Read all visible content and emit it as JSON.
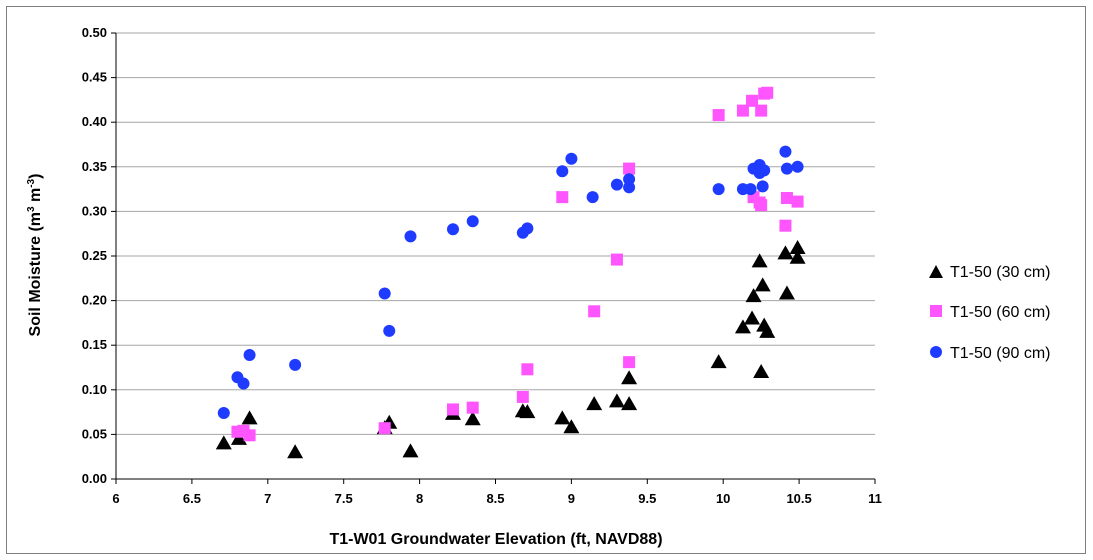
{
  "chart_data": {
    "type": "scatter",
    "xlabel": "T1-W01 Groundwater Elevation (ft, NAVD88)",
    "ylabel": {
      "main": "Soil Moisture (m",
      "sup1": "3",
      "mid": " m",
      "sup2": "-3",
      "end": ")"
    },
    "xlim": [
      6,
      11
    ],
    "ylim": [
      0,
      0.5
    ],
    "x_ticks": [
      "6",
      "6.5",
      "7",
      "7.5",
      "8",
      "8.5",
      "9",
      "9.5",
      "10",
      "10.5",
      "11"
    ],
    "y_ticks": [
      "0.00",
      "0.05",
      "0.10",
      "0.15",
      "0.20",
      "0.25",
      "0.30",
      "0.35",
      "0.40",
      "0.45",
      "0.50"
    ],
    "grid": "horizontal",
    "legend_position": "right",
    "series": [
      {
        "name": "T1-50 (30 cm)",
        "marker": "triangle",
        "color": "#000000",
        "points": [
          [
            6.71,
            0.04
          ],
          [
            6.81,
            0.045
          ],
          [
            6.88,
            0.068
          ],
          [
            7.18,
            0.03
          ],
          [
            7.77,
            0.057
          ],
          [
            7.8,
            0.063
          ],
          [
            7.94,
            0.031
          ],
          [
            8.22,
            0.073
          ],
          [
            8.35,
            0.067
          ],
          [
            8.68,
            0.076
          ],
          [
            8.71,
            0.075
          ],
          [
            8.94,
            0.068
          ],
          [
            9.0,
            0.058
          ],
          [
            9.15,
            0.084
          ],
          [
            9.3,
            0.087
          ],
          [
            9.38,
            0.113
          ],
          [
            9.38,
            0.084
          ],
          [
            9.97,
            0.131
          ],
          [
            10.13,
            0.17
          ],
          [
            10.19,
            0.18
          ],
          [
            10.2,
            0.205
          ],
          [
            10.24,
            0.244
          ],
          [
            10.26,
            0.217
          ],
          [
            10.25,
            0.12
          ],
          [
            10.27,
            0.172
          ],
          [
            10.29,
            0.165
          ],
          [
            10.41,
            0.253
          ],
          [
            10.42,
            0.208
          ],
          [
            10.49,
            0.259
          ],
          [
            10.49,
            0.248
          ]
        ]
      },
      {
        "name": "T1-50 (60 cm)",
        "marker": "square",
        "color": "#ff55ff",
        "points": [
          [
            6.8,
            0.053
          ],
          [
            6.84,
            0.054
          ],
          [
            6.88,
            0.049
          ],
          [
            7.77,
            0.057
          ],
          [
            8.22,
            0.078
          ],
          [
            8.35,
            0.08
          ],
          [
            8.68,
            0.092
          ],
          [
            8.71,
            0.123
          ],
          [
            8.94,
            0.316
          ],
          [
            9.15,
            0.188
          ],
          [
            9.3,
            0.246
          ],
          [
            9.38,
            0.348
          ],
          [
            9.38,
            0.131
          ],
          [
            9.97,
            0.408
          ],
          [
            10.13,
            0.413
          ],
          [
            10.19,
            0.424
          ],
          [
            10.2,
            0.316
          ],
          [
            10.24,
            0.31
          ],
          [
            10.25,
            0.413
          ],
          [
            10.25,
            0.307
          ],
          [
            10.27,
            0.432
          ],
          [
            10.29,
            0.433
          ],
          [
            10.41,
            0.284
          ],
          [
            10.42,
            0.315
          ],
          [
            10.49,
            0.311
          ]
        ]
      },
      {
        "name": "T1-50 (90 cm)",
        "marker": "circle",
        "color": "#1f3bff",
        "points": [
          [
            6.71,
            0.074
          ],
          [
            6.8,
            0.114
          ],
          [
            6.84,
            0.107
          ],
          [
            6.88,
            0.139
          ],
          [
            7.18,
            0.128
          ],
          [
            7.77,
            0.208
          ],
          [
            7.8,
            0.166
          ],
          [
            7.94,
            0.272
          ],
          [
            8.22,
            0.28
          ],
          [
            8.35,
            0.289
          ],
          [
            8.68,
            0.276
          ],
          [
            8.71,
            0.281
          ],
          [
            8.94,
            0.345
          ],
          [
            9.0,
            0.359
          ],
          [
            9.14,
            0.316
          ],
          [
            9.3,
            0.33
          ],
          [
            9.38,
            0.327
          ],
          [
            9.38,
            0.336
          ],
          [
            9.97,
            0.325
          ],
          [
            10.13,
            0.325
          ],
          [
            10.18,
            0.325
          ],
          [
            10.2,
            0.348
          ],
          [
            10.24,
            0.352
          ],
          [
            10.24,
            0.343
          ],
          [
            10.26,
            0.328
          ],
          [
            10.27,
            0.346
          ],
          [
            10.41,
            0.367
          ],
          [
            10.42,
            0.348
          ],
          [
            10.49,
            0.35
          ]
        ]
      }
    ]
  }
}
